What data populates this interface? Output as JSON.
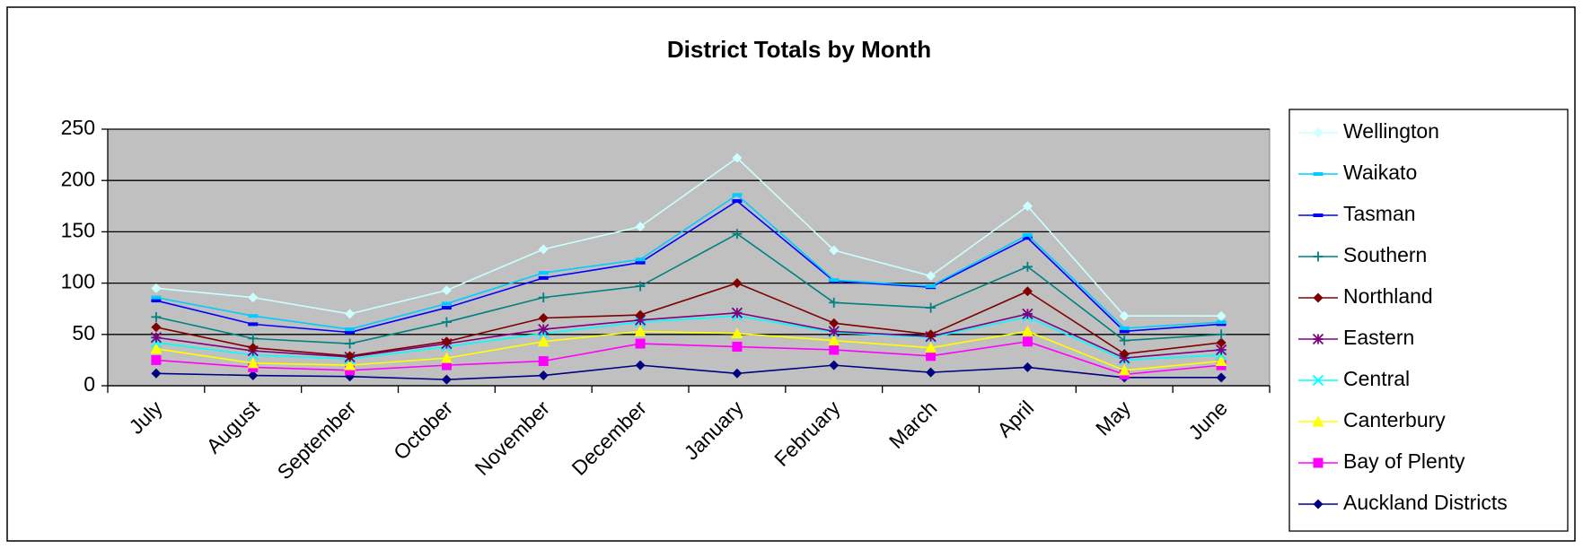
{
  "chart_data": {
    "type": "line",
    "title": "District Totals by Month",
    "categories": [
      "July",
      "August",
      "September",
      "October",
      "November",
      "December",
      "January",
      "February",
      "March",
      "April",
      "May",
      "June"
    ],
    "ylim": [
      0,
      250
    ],
    "yticks": [
      0,
      50,
      100,
      150,
      200,
      250
    ],
    "grid": true,
    "legend": "right",
    "series": [
      {
        "name": "Wellington",
        "color": "#ccffff",
        "marker": "diamond",
        "values": [
          95,
          86,
          70,
          93,
          133,
          155,
          222,
          132,
          107,
          175,
          68,
          68
        ]
      },
      {
        "name": "Waikato",
        "color": "#00ccff",
        "marker": "dash",
        "values": [
          86,
          68,
          55,
          80,
          110,
          123,
          186,
          103,
          97,
          147,
          56,
          62
        ]
      },
      {
        "name": "Tasman",
        "color": "#0000ff",
        "marker": "dash",
        "values": [
          83,
          60,
          52,
          76,
          105,
          120,
          180,
          102,
          96,
          144,
          53,
          60
        ]
      },
      {
        "name": "Southern",
        "color": "#008080",
        "marker": "plus",
        "values": [
          67,
          46,
          41,
          62,
          86,
          97,
          148,
          81,
          76,
          116,
          44,
          50
        ]
      },
      {
        "name": "Northland",
        "color": "#800000",
        "marker": "diamond",
        "values": [
          57,
          37,
          29,
          43,
          66,
          69,
          100,
          61,
          50,
          92,
          31,
          42
        ]
      },
      {
        "name": "Eastern",
        "color": "#800080",
        "marker": "star",
        "values": [
          47,
          34,
          28,
          41,
          55,
          64,
          71,
          53,
          48,
          70,
          27,
          35
        ]
      },
      {
        "name": "Central",
        "color": "#00ffff",
        "marker": "x",
        "values": [
          42,
          30,
          26,
          38,
          51,
          62,
          68,
          52,
          47,
          67,
          25,
          30
        ]
      },
      {
        "name": "Canterbury",
        "color": "#ffff00",
        "marker": "triangle",
        "values": [
          36,
          22,
          20,
          27,
          43,
          53,
          51,
          44,
          37,
          53,
          15,
          24
        ]
      },
      {
        "name": "Bay of Plenty",
        "color": "#ff00ff",
        "marker": "square",
        "values": [
          25,
          18,
          15,
          20,
          24,
          41,
          38,
          35,
          29,
          43,
          11,
          20
        ]
      },
      {
        "name": "Auckland Districts",
        "color": "#000080",
        "marker": "diamond",
        "values": [
          12,
          10,
          9,
          6,
          10,
          20,
          12,
          20,
          13,
          18,
          8,
          8
        ]
      }
    ]
  }
}
